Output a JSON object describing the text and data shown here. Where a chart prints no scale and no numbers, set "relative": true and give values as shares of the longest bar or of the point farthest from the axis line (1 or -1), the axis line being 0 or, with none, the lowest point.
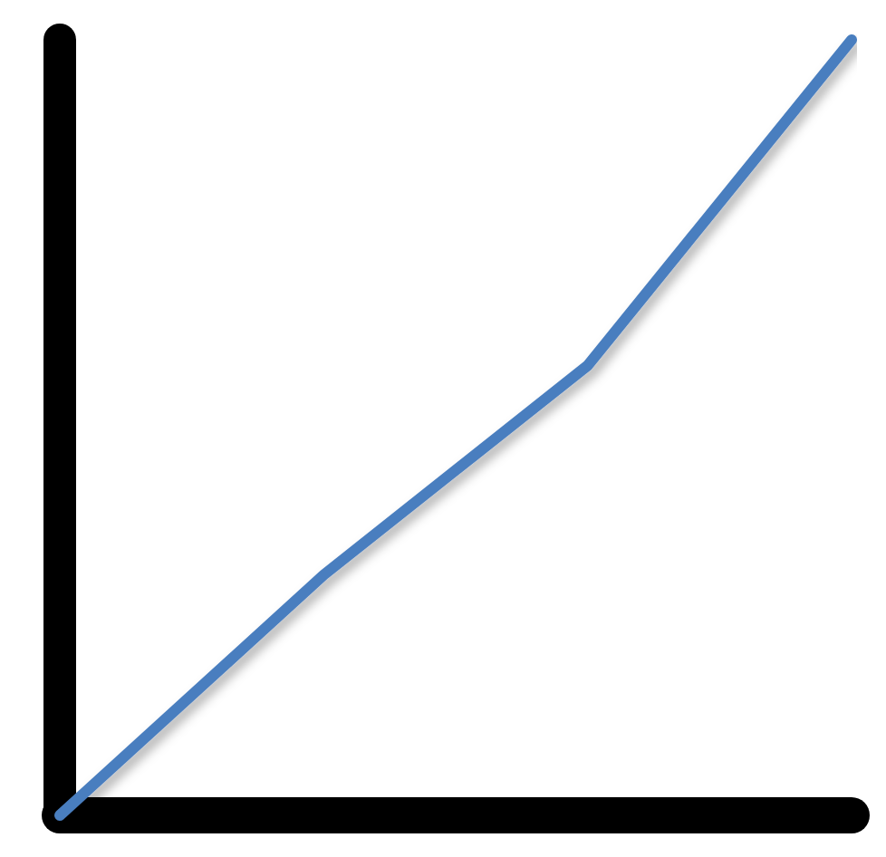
{
  "chart_data": {
    "type": "line",
    "relative": true,
    "categories": [
      null,
      null,
      null,
      null
    ],
    "values": [
      0,
      0.31,
      0.58,
      1
    ],
    "color": "#4a7ebf",
    "marker": "none",
    "line_style": "solid"
  }
}
